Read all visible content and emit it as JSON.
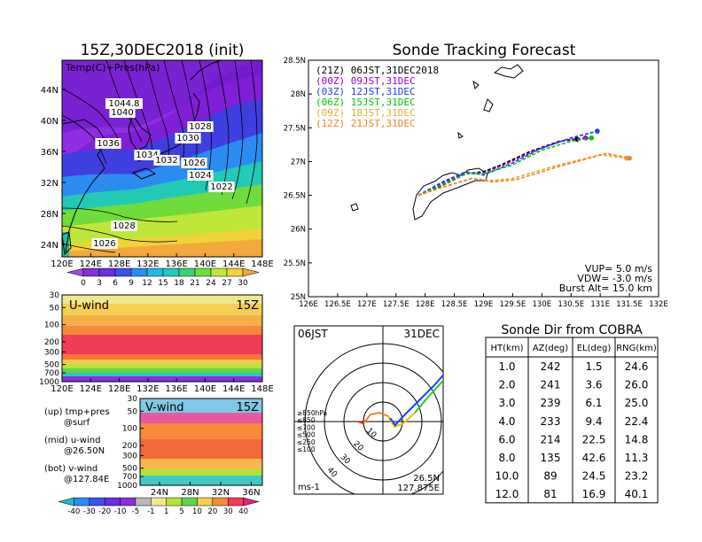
{
  "map_panel": {
    "title": "15Z,30DEC2018 (init)",
    "subtitle": "Temp(C)+Pres(hPa)",
    "lon_ticks": [
      "120E",
      "124E",
      "128E",
      "132E",
      "136E",
      "140E",
      "144E",
      "148E"
    ],
    "lat_ticks": [
      "44N",
      "40N",
      "36N",
      "32N",
      "28N",
      "24N"
    ],
    "pressure_labels": [
      "1044.8",
      "1040",
      "1036",
      "1034",
      "1032",
      "1030",
      "1028",
      "1026",
      "1024",
      "1022",
      "1028",
      "1026"
    ],
    "colorbar_ticks": [
      "0",
      "3",
      "6",
      "9",
      "12",
      "15",
      "18",
      "21",
      "24",
      "27",
      "30"
    ]
  },
  "uwind_panel": {
    "title": "U-wind",
    "time": "15Z",
    "y_ticks": [
      "30",
      "50",
      "100",
      "200",
      "300",
      "500",
      "700",
      "1000"
    ],
    "x_ticks": [
      "120E",
      "124E",
      "128E",
      "132E",
      "136E",
      "140E",
      "144E",
      "148E"
    ]
  },
  "vwind_panel": {
    "title": "V-wind",
    "time": "15Z",
    "y_ticks": [
      "30",
      "50",
      "100",
      "200",
      "300",
      "500",
      "700",
      "1000"
    ],
    "x_ticks": [
      "24N",
      "28N",
      "32N",
      "36N"
    ]
  },
  "legend_notes": {
    "up": "(up)  tmp+pres",
    "up2": "@surf",
    "mid": "(mid)  u-wind",
    "mid2": "@26.50N",
    "bot": "(bot)  v-wind",
    "bot2": "@127.84E"
  },
  "wind_colorbar_ticks": [
    "-40",
    "-30",
    "-20",
    "-10",
    "-5",
    "-1",
    "1",
    "5",
    "10",
    "20",
    "30",
    "40"
  ],
  "tracking": {
    "title": "Sonde Tracking Forecast",
    "legend": [
      {
        "label": "(21Z)  06JST,31DEC2018",
        "color": "#000000"
      },
      {
        "label": "(00Z)  09JST,31DEC",
        "color": "#a000c8"
      },
      {
        "label": "(03Z)  12JST,31DEC",
        "color": "#1e3cff"
      },
      {
        "label": "(06Z)  15JST,31DEC",
        "color": "#00c800"
      },
      {
        "label": "(09Z)  18JST,31DEC",
        "color": "#e6af2d"
      },
      {
        "label": "(12Z)  21JST,31DEC",
        "color": "#f08228"
      }
    ],
    "vup": "VUP=  5.0  m/s",
    "vdw": "VDW=  -3.0  m/s",
    "burst": "Burst Alt=  15.0  km"
  },
  "chart_data": {
    "type": "line",
    "title": "Sonde Tracking Forecast",
    "xlabel": "",
    "ylabel": "",
    "xlim": [
      126,
      132
    ],
    "ylim": [
      25,
      28.5
    ],
    "x_ticks": [
      "126E",
      "126.5E",
      "127E",
      "127.5E",
      "128E",
      "128.5E",
      "129E",
      "129.5E",
      "130E",
      "130.5E",
      "131E",
      "131.5E",
      "132E"
    ],
    "y_ticks": [
      "25N",
      "25.5N",
      "26N",
      "26.5N",
      "27N",
      "27.5N",
      "28N",
      "28.5N"
    ],
    "series": [
      {
        "name": "(21Z)  06JST,31DEC2018",
        "color": "#000000",
        "x": [
          127.88,
          128.3,
          128.7,
          129.0,
          129.3,
          129.8,
          130.3,
          130.6
        ],
        "y": [
          26.5,
          26.65,
          26.82,
          26.85,
          26.95,
          27.15,
          27.3,
          27.33
        ]
      },
      {
        "name": "(00Z)  09JST,31DEC",
        "color": "#a000c8",
        "x": [
          127.88,
          128.3,
          128.7,
          129.0,
          129.4,
          129.9,
          130.4,
          130.75
        ],
        "y": [
          26.5,
          26.68,
          26.83,
          26.83,
          26.97,
          27.17,
          27.32,
          27.35
        ]
      },
      {
        "name": "(03Z)  12JST,31DEC",
        "color": "#1e3cff",
        "x": [
          127.88,
          128.3,
          128.7,
          129.0,
          129.5,
          130.0,
          130.5,
          130.95
        ],
        "y": [
          26.5,
          26.7,
          26.85,
          26.8,
          26.98,
          27.2,
          27.35,
          27.45
        ]
      },
      {
        "name": "(06Z)  15JST,31DEC",
        "color": "#00c800",
        "x": [
          127.88,
          128.3,
          128.7,
          129.0,
          129.5,
          130.0,
          130.5,
          130.85
        ],
        "y": [
          26.5,
          26.66,
          26.82,
          26.82,
          26.95,
          27.17,
          27.3,
          27.35
        ]
      },
      {
        "name": "(09Z)  18JST,31DEC",
        "color": "#e6af2d",
        "x": [
          127.88,
          128.3,
          128.8,
          129.15,
          129.5,
          130.2,
          131.0,
          131.45
        ],
        "y": [
          26.5,
          26.62,
          26.75,
          26.72,
          26.75,
          26.93,
          27.1,
          27.05
        ]
      },
      {
        "name": "(12Z)  21JST,31DEC",
        "color": "#f08228",
        "x": [
          127.88,
          128.3,
          128.8,
          129.15,
          129.55,
          130.3,
          131.1,
          131.5
        ],
        "y": [
          26.5,
          26.62,
          26.75,
          26.7,
          26.73,
          26.93,
          27.12,
          27.05
        ]
      }
    ]
  },
  "polar": {
    "time": "06JST",
    "date": "31DEC",
    "lat": "26.5N",
    "lon": "127.875E",
    "unit": "ms-1",
    "ring_labels": [
      "10",
      "20",
      "30",
      "40"
    ],
    "legend": [
      {
        "label": "≥850hPa",
        "color": "#e62828"
      },
      {
        "label": "≤850",
        "color": "#f08228"
      },
      {
        "label": "≤700",
        "color": "#e6c800"
      },
      {
        "label": "≤500",
        "color": "#28c828"
      },
      {
        "label": "≤250",
        "color": "#28a0e6"
      },
      {
        "label": "≤100",
        "color": "#1e3cff"
      }
    ]
  },
  "cobra_table": {
    "title": "Sonde Dir from COBRA",
    "headers": [
      "HT(km)",
      "AZ(deg)",
      "EL(deg)",
      "RNG(km)"
    ],
    "rows": [
      [
        "1.0",
        "242",
        "1.5",
        "24.6"
      ],
      [
        "2.0",
        "241",
        "3.6",
        "26.0"
      ],
      [
        "3.0",
        "239",
        "6.1",
        "25.0"
      ],
      [
        "4.0",
        "233",
        "9.4",
        "22.4"
      ],
      [
        "6.0",
        "214",
        "22.5",
        "14.8"
      ],
      [
        "8.0",
        "135",
        "42.6",
        "11.3"
      ],
      [
        "10.0",
        "89",
        "24.5",
        "23.2"
      ],
      [
        "12.0",
        "81",
        "16.9",
        "40.1"
      ]
    ]
  }
}
